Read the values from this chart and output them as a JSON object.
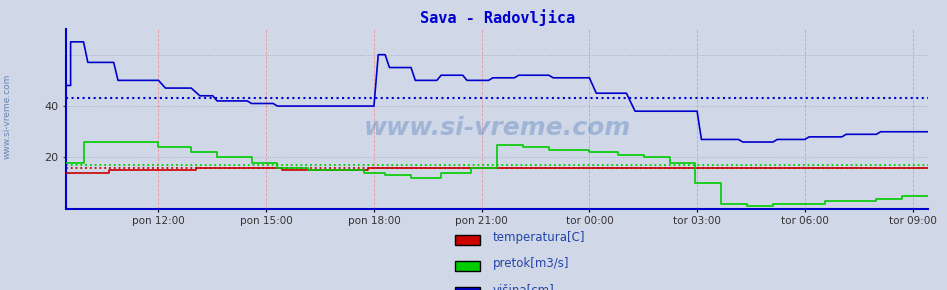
{
  "title": "Sava - Radovljica",
  "title_color": "#0000cc",
  "bg_color": "#d0d8e8",
  "plot_bg_color": "#d0d8e8",
  "xlim": [
    0,
    1
  ],
  "ylim": [
    0,
    70
  ],
  "yticks": [
    20,
    40
  ],
  "xtick_labels": [
    "pon 12:00",
    "pon 15:00",
    "pon 18:00",
    "pon 21:00",
    "tor 00:00",
    "tor 03:00",
    "tor 06:00",
    "tor 09:00"
  ],
  "xtick_positions": [
    0.107,
    0.232,
    0.357,
    0.482,
    0.607,
    0.732,
    0.857,
    0.982
  ],
  "watermark": "www.si-vreme.com",
  "legend": [
    "temperatura[C]",
    "pretok[m3/s]",
    "višina[cm]"
  ],
  "legend_colors": [
    "#cc0000",
    "#00cc00",
    "#0000cc"
  ],
  "avg_temperatura": 16.0,
  "avg_pretok": 17.0,
  "avg_visina": 43.0,
  "temperatura_x": [
    0.0,
    0.05,
    0.05,
    0.15,
    0.15,
    0.25,
    0.25,
    0.35,
    0.35,
    0.607,
    0.607,
    1.0
  ],
  "temperatura_y": [
    14,
    14,
    15,
    15,
    16,
    16,
    15,
    15,
    16,
    16,
    16,
    16
  ],
  "pretok_x": [
    0.0,
    0.02,
    0.02,
    0.04,
    0.04,
    0.107,
    0.107,
    0.145,
    0.145,
    0.175,
    0.175,
    0.215,
    0.215,
    0.245,
    0.245,
    0.28,
    0.28,
    0.32,
    0.32,
    0.345,
    0.345,
    0.37,
    0.37,
    0.4,
    0.4,
    0.435,
    0.435,
    0.47,
    0.47,
    0.5,
    0.5,
    0.53,
    0.53,
    0.56,
    0.56,
    0.59,
    0.59,
    0.607,
    0.607,
    0.64,
    0.64,
    0.67,
    0.67,
    0.7,
    0.7,
    0.73,
    0.73,
    0.76,
    0.76,
    0.79,
    0.79,
    0.82,
    0.82,
    0.857,
    0.857,
    0.88,
    0.88,
    0.91,
    0.91,
    0.94,
    0.94,
    0.97,
    0.97,
    1.0
  ],
  "pretok_y": [
    18,
    18,
    26,
    26,
    26,
    26,
    24,
    24,
    22,
    22,
    20,
    20,
    18,
    18,
    16,
    16,
    15,
    15,
    15,
    15,
    14,
    14,
    13,
    13,
    12,
    12,
    14,
    14,
    16,
    16,
    25,
    25,
    24,
    24,
    23,
    23,
    23,
    23,
    22,
    22,
    21,
    21,
    20,
    20,
    18,
    18,
    10,
    10,
    2,
    2,
    1,
    1,
    2,
    2,
    2,
    2,
    3,
    3,
    3,
    3,
    4,
    4,
    5,
    5
  ],
  "visina_x": [
    0.0,
    0.005,
    0.005,
    0.02,
    0.02,
    0.025,
    0.025,
    0.055,
    0.055,
    0.06,
    0.06,
    0.107,
    0.107,
    0.115,
    0.115,
    0.145,
    0.145,
    0.155,
    0.155,
    0.17,
    0.17,
    0.175,
    0.175,
    0.21,
    0.21,
    0.215,
    0.215,
    0.24,
    0.24,
    0.245,
    0.245,
    0.357,
    0.357,
    0.362,
    0.362,
    0.37,
    0.37,
    0.375,
    0.375,
    0.4,
    0.4,
    0.405,
    0.405,
    0.43,
    0.43,
    0.435,
    0.435,
    0.46,
    0.46,
    0.465,
    0.465,
    0.49,
    0.49,
    0.495,
    0.495,
    0.52,
    0.52,
    0.525,
    0.525,
    0.56,
    0.56,
    0.565,
    0.565,
    0.607,
    0.607,
    0.615,
    0.615,
    0.65,
    0.65,
    0.66,
    0.66,
    0.732,
    0.732,
    0.737,
    0.737,
    0.78,
    0.78,
    0.785,
    0.785,
    0.82,
    0.82,
    0.825,
    0.825,
    0.857,
    0.857,
    0.862,
    0.862,
    0.9,
    0.9,
    0.905,
    0.905,
    0.94,
    0.94,
    0.945,
    0.945,
    1.0
  ],
  "visina_y": [
    48,
    48,
    65,
    65,
    65,
    57,
    57,
    57,
    57,
    50,
    50,
    50,
    50,
    47,
    47,
    47,
    47,
    44,
    44,
    44,
    44,
    42,
    42,
    42,
    42,
    41,
    41,
    41,
    41,
    40,
    40,
    40,
    40,
    60,
    60,
    60,
    60,
    55,
    55,
    55,
    55,
    50,
    50,
    50,
    50,
    52,
    52,
    52,
    52,
    50,
    50,
    50,
    50,
    51,
    51,
    51,
    51,
    52,
    52,
    52,
    52,
    51,
    51,
    51,
    51,
    45,
    45,
    45,
    45,
    38,
    38,
    38,
    38,
    27,
    27,
    27,
    27,
    26,
    26,
    26,
    26,
    27,
    27,
    27,
    27,
    28,
    28,
    28,
    28,
    29,
    29,
    29,
    29,
    30,
    30,
    30
  ]
}
